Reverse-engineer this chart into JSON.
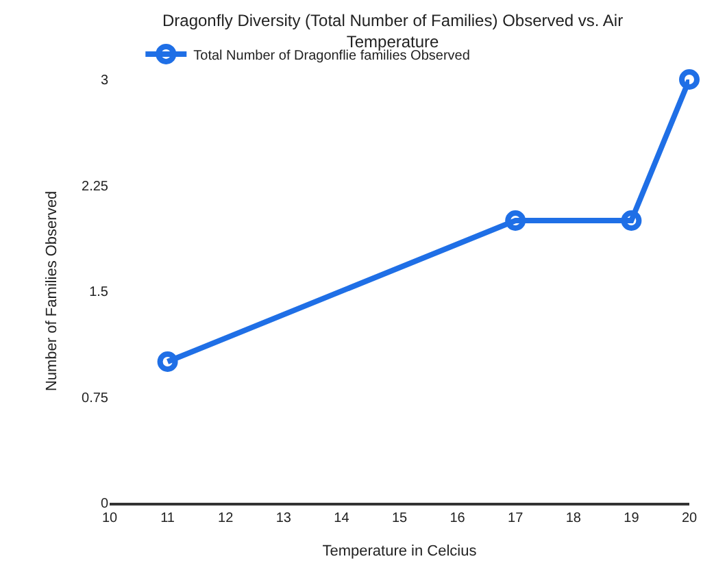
{
  "chart_data": {
    "type": "line",
    "title": "Dragonfly Diversity (Total Number of Families) Observed vs. Air Temperature",
    "xlabel": "Temperature in Celcius",
    "ylabel": "Number of Families Observed",
    "x": [
      11,
      17,
      19,
      20
    ],
    "series": [
      {
        "name": "Total Number of Dragonflie families Observed",
        "color": "#1f6fe6",
        "values": [
          1,
          2,
          2,
          3
        ]
      }
    ],
    "xlim": [
      10,
      20
    ],
    "xticks": [
      10,
      11,
      12,
      13,
      14,
      15,
      16,
      17,
      18,
      19,
      20
    ],
    "ylim": [
      0,
      3
    ],
    "yticks": [
      0,
      0.75,
      1.5,
      2.25,
      3
    ],
    "grid": false,
    "legend": "top",
    "marker": "circle",
    "line_style": "solid"
  }
}
